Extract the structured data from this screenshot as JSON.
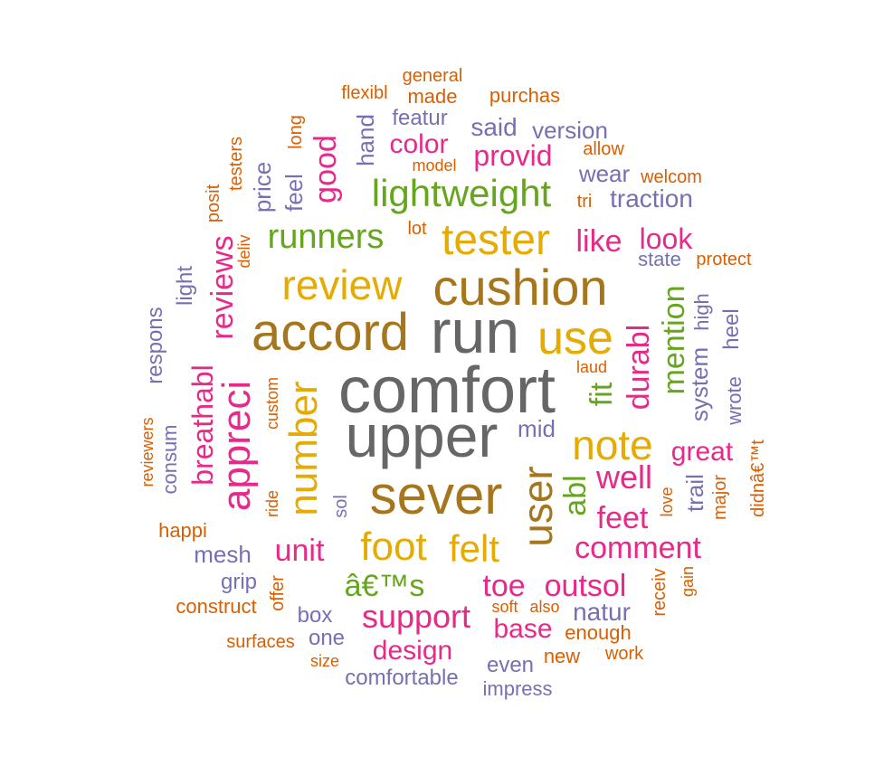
{
  "palette": {
    "gray": "#666666",
    "brown": "#a6761d",
    "gold": "#e6ab02",
    "magenta": "#e7298a",
    "green": "#66a61e",
    "purple": "#7570b3",
    "orange": "#d95f02"
  },
  "words": [
    {
      "text": "comfort",
      "color": "gray"
    },
    {
      "text": "upper",
      "color": "gray"
    },
    {
      "text": "run",
      "color": "gray"
    },
    {
      "text": "cushion",
      "color": "brown"
    },
    {
      "text": "accord",
      "color": "brown"
    },
    {
      "text": "sever",
      "color": "brown"
    },
    {
      "text": "user",
      "color": "brown"
    },
    {
      "text": "review",
      "color": "gold"
    },
    {
      "text": "tester",
      "color": "gold"
    },
    {
      "text": "use",
      "color": "gold"
    },
    {
      "text": "note",
      "color": "gold"
    },
    {
      "text": "number",
      "color": "gold"
    },
    {
      "text": "foot",
      "color": "gold"
    },
    {
      "text": "felt",
      "color": "gold"
    },
    {
      "text": "appreci",
      "color": "magenta"
    },
    {
      "text": "lightweight",
      "color": "green"
    },
    {
      "text": "runners",
      "color": "green"
    },
    {
      "text": "fit",
      "color": "green"
    },
    {
      "text": "mention",
      "color": "green"
    },
    {
      "text": "abl",
      "color": "green"
    },
    {
      "text": "â€™s",
      "color": "green"
    },
    {
      "text": "durabl",
      "color": "magenta"
    },
    {
      "text": "reviews",
      "color": "magenta"
    },
    {
      "text": "breathabl",
      "color": "magenta"
    },
    {
      "text": "good",
      "color": "magenta"
    },
    {
      "text": "like",
      "color": "magenta"
    },
    {
      "text": "look",
      "color": "magenta"
    },
    {
      "text": "well",
      "color": "magenta"
    },
    {
      "text": "feet",
      "color": "magenta"
    },
    {
      "text": "great",
      "color": "magenta"
    },
    {
      "text": "comment",
      "color": "magenta"
    },
    {
      "text": "unit",
      "color": "magenta"
    },
    {
      "text": "toe",
      "color": "magenta"
    },
    {
      "text": "outsol",
      "color": "magenta"
    },
    {
      "text": "support",
      "color": "magenta"
    },
    {
      "text": "design",
      "color": "magenta"
    },
    {
      "text": "base",
      "color": "magenta"
    },
    {
      "text": "color",
      "color": "magenta"
    },
    {
      "text": "provid",
      "color": "magenta"
    },
    {
      "text": "said",
      "color": "purple"
    },
    {
      "text": "version",
      "color": "purple"
    },
    {
      "text": "featur",
      "color": "purple"
    },
    {
      "text": "wear",
      "color": "purple"
    },
    {
      "text": "traction",
      "color": "purple"
    },
    {
      "text": "state",
      "color": "purple"
    },
    {
      "text": "hand",
      "color": "purple"
    },
    {
      "text": "feel",
      "color": "purple"
    },
    {
      "text": "price",
      "color": "purple"
    },
    {
      "text": "light",
      "color": "purple"
    },
    {
      "text": "respons",
      "color": "purple"
    },
    {
      "text": "consum",
      "color": "purple"
    },
    {
      "text": "mesh",
      "color": "purple"
    },
    {
      "text": "grip",
      "color": "purple"
    },
    {
      "text": "box",
      "color": "purple"
    },
    {
      "text": "one",
      "color": "purple"
    },
    {
      "text": "comfortable",
      "color": "purple"
    },
    {
      "text": "even",
      "color": "purple"
    },
    {
      "text": "natur",
      "color": "purple"
    },
    {
      "text": "mid",
      "color": "purple"
    },
    {
      "text": "system",
      "color": "purple"
    },
    {
      "text": "high",
      "color": "purple"
    },
    {
      "text": "heel",
      "color": "purple"
    },
    {
      "text": "wrote",
      "color": "purple"
    },
    {
      "text": "trail",
      "color": "purple"
    },
    {
      "text": "sol",
      "color": "purple"
    },
    {
      "text": "impress",
      "color": "purple"
    },
    {
      "text": "general",
      "color": "orange"
    },
    {
      "text": "flexibl",
      "color": "orange"
    },
    {
      "text": "made",
      "color": "orange"
    },
    {
      "text": "purchas",
      "color": "orange"
    },
    {
      "text": "allow",
      "color": "orange"
    },
    {
      "text": "model",
      "color": "orange"
    },
    {
      "text": "welcom",
      "color": "orange"
    },
    {
      "text": "tri",
      "color": "orange"
    },
    {
      "text": "protect",
      "color": "orange"
    },
    {
      "text": "lot",
      "color": "orange"
    },
    {
      "text": "long",
      "color": "orange"
    },
    {
      "text": "testers",
      "color": "orange"
    },
    {
      "text": "posit",
      "color": "orange"
    },
    {
      "text": "deliv",
      "color": "orange"
    },
    {
      "text": "laud",
      "color": "orange"
    },
    {
      "text": "custom",
      "color": "orange"
    },
    {
      "text": "reviewers",
      "color": "orange"
    },
    {
      "text": "ride",
      "color": "orange"
    },
    {
      "text": "happi",
      "color": "orange"
    },
    {
      "text": "construct",
      "color": "orange"
    },
    {
      "text": "offer",
      "color": "orange"
    },
    {
      "text": "surfaces",
      "color": "orange"
    },
    {
      "text": "size",
      "color": "orange"
    },
    {
      "text": "soft",
      "color": "orange"
    },
    {
      "text": "also",
      "color": "orange"
    },
    {
      "text": "enough",
      "color": "orange"
    },
    {
      "text": "new",
      "color": "orange"
    },
    {
      "text": "work",
      "color": "orange"
    },
    {
      "text": "receiv",
      "color": "orange"
    },
    {
      "text": "gain",
      "color": "orange"
    },
    {
      "text": "love",
      "color": "orange"
    },
    {
      "text": "major",
      "color": "orange"
    },
    {
      "text": "didnâ€™t",
      "color": "orange"
    }
  ]
}
